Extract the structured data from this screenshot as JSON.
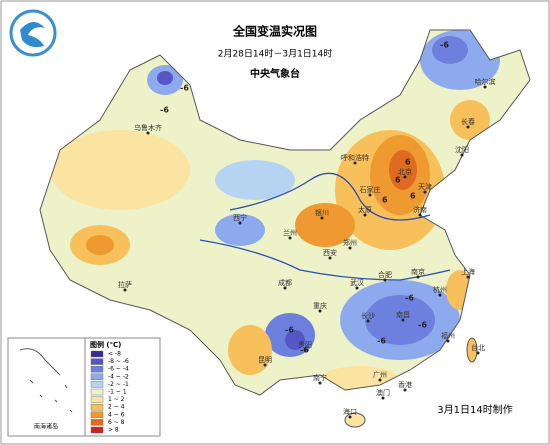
{
  "header": {
    "title": "全国变温实况图",
    "subtitle": "2月28日14时－3月1日14时",
    "issuer": "中央气象台"
  },
  "legend": {
    "title": "图例 (℃)",
    "items": [
      {
        "label": "< -8",
        "color": "#3b2a8e"
      },
      {
        "label": "-8 ~ -6",
        "color": "#5656c6"
      },
      {
        "label": "-6 ~ -4",
        "color": "#6e80de"
      },
      {
        "label": "-4 ~ -2",
        "color": "#8eaaee"
      },
      {
        "label": "-2 ~ -1",
        "color": "#b6d4f2"
      },
      {
        "label": "-1 ~ 1",
        "color": "#eef2c8"
      },
      {
        "label": "1 ~ 2",
        "color": "#fbe4a2"
      },
      {
        "label": "2 ~ 4",
        "color": "#f7c05a"
      },
      {
        "label": "4 ~ 6",
        "color": "#ef9a30"
      },
      {
        "label": "6 ~ 8",
        "color": "#e06a20"
      },
      {
        "label": "> 8",
        "color": "#cf2020"
      }
    ]
  },
  "cities": [
    "哈尔滨",
    "长春",
    "沈阳",
    "呼和浩特",
    "北京",
    "天津",
    "石家庄",
    "太原",
    "济南",
    "银川",
    "西宁",
    "兰州",
    "西安",
    "郑州",
    "合肥",
    "南京",
    "上海",
    "武汉",
    "杭州",
    "南昌",
    "福州",
    "台北",
    "长沙",
    "贵阳",
    "昆明",
    "南宁",
    "广州",
    "香港",
    "澳门",
    "海口",
    "重庆",
    "成都",
    "拉萨",
    "乌鲁木齐"
  ],
  "contour_labels": [
    "-6",
    "-6",
    "-6",
    "6",
    "6",
    "6",
    "6",
    "-6",
    "-6",
    "-6",
    "-6",
    "-6"
  ],
  "inset": {
    "label": "南海诸岛"
  },
  "footer": "3月1日14时制作"
}
